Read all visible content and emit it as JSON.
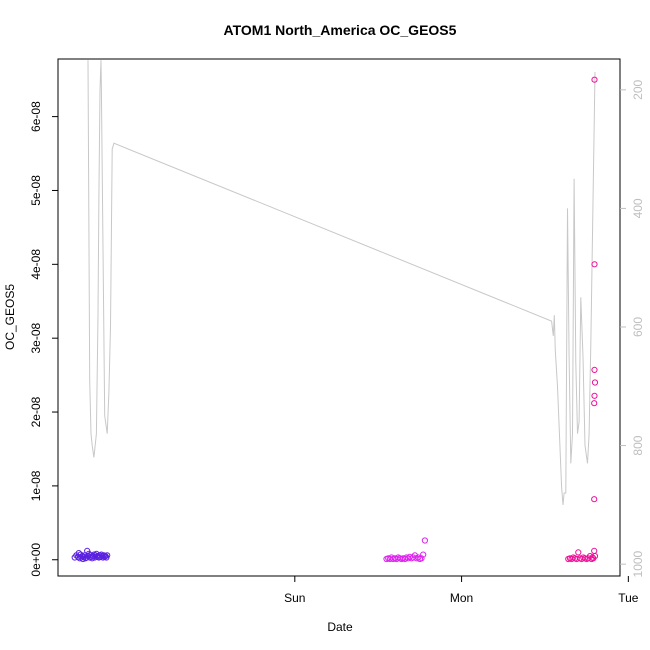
{
  "chart_data": {
    "type": "scatter",
    "title": "ATOM1 North_America OC_GEOS5",
    "xlabel": "Date",
    "ylabel": "OC_GEOS5",
    "xlim": [
      -1.42,
      1.95
    ],
    "ylim": [
      -2.2e-09,
      6.78e-08
    ],
    "x_ticks": [
      {
        "value": 0,
        "label": "Sun"
      },
      {
        "value": 1,
        "label": "Mon"
      },
      {
        "value": 2,
        "label": "Tue"
      }
    ],
    "y_ticks": [
      {
        "value": 0,
        "label": "0e+00"
      },
      {
        "value": 1e-08,
        "label": "1e-08"
      },
      {
        "value": 2e-08,
        "label": "2e-08"
      },
      {
        "value": 3e-08,
        "label": "3e-08"
      },
      {
        "value": 4e-08,
        "label": "4e-08"
      },
      {
        "value": 5e-08,
        "label": "5e-08"
      },
      {
        "value": 6e-08,
        "label": "6e-08"
      }
    ],
    "y2_ylim": [
      1020,
      148
    ],
    "y2_ticks": [
      {
        "value": 200,
        "label": "200"
      },
      {
        "value": 400,
        "label": "400"
      },
      {
        "value": 600,
        "label": "600"
      },
      {
        "value": 800,
        "label": "800"
      },
      {
        "value": 1000,
        "label": "1000"
      }
    ],
    "grid": false,
    "colors": {
      "axis": "#000000",
      "pressure_line": "#c8c8c8",
      "right_axis": "#bebebe"
    },
    "pressure_line": {
      "x": [
        -1.24,
        -1.23,
        -1.222,
        -1.215,
        -1.205,
        -1.19,
        -1.18,
        -1.175,
        -1.168,
        -1.162,
        -1.16,
        -1.14,
        -1.125,
        -1.115,
        -1.105,
        -1.095,
        -1.085,
        1.54,
        1.55,
        1.556,
        1.562,
        1.575,
        1.6,
        1.608,
        1.615,
        1.625,
        1.635,
        1.645,
        1.655,
        1.665,
        1.675,
        1.685,
        1.695,
        1.705,
        1.715,
        1.728,
        1.74,
        1.755,
        1.765,
        1.775,
        1.8
      ],
      "y": [
        150,
        690,
        780,
        800,
        820,
        780,
        580,
        380,
        200,
        150,
        200,
        750,
        780,
        710,
        600,
        300,
        290,
        590,
        615,
        580,
        640,
        700,
        870,
        900,
        880,
        880,
        400,
        650,
        830,
        780,
        350,
        660,
        780,
        760,
        550,
        650,
        800,
        830,
        780,
        630,
        170
      ]
    },
    "series": [
      {
        "color": "#5b21e0",
        "points": [
          [
            -1.32,
            3e-10
          ],
          [
            -1.31,
            6e-10
          ],
          [
            -1.3,
            4e-10
          ],
          [
            -1.295,
            9e-10
          ],
          [
            -1.29,
            2e-10
          ],
          [
            -1.285,
            7e-10
          ],
          [
            -1.28,
            3e-10
          ],
          [
            -1.275,
            5e-10
          ],
          [
            -1.27,
            1e-10
          ],
          [
            -1.265,
            4e-10
          ],
          [
            -1.26,
            6e-10
          ],
          [
            -1.255,
            2e-10
          ],
          [
            -1.25,
            3e-10
          ],
          [
            -1.245,
            1.2e-09
          ],
          [
            -1.24,
            5e-10
          ],
          [
            -1.235,
            8e-10
          ],
          [
            -1.23,
            3e-10
          ],
          [
            -1.225,
            6e-10
          ],
          [
            -1.22,
            4e-10
          ],
          [
            -1.215,
            2e-10
          ],
          [
            -1.21,
            5e-10
          ],
          [
            -1.205,
            7e-10
          ],
          [
            -1.2,
            3e-10
          ],
          [
            -1.195,
            6e-10
          ],
          [
            -1.19,
            8e-10
          ],
          [
            -1.185,
            4e-10
          ],
          [
            -1.18,
            5e-10
          ],
          [
            -1.175,
            3e-10
          ],
          [
            -1.17,
            6e-10
          ],
          [
            -1.165,
            4e-10
          ],
          [
            -1.16,
            7e-10
          ],
          [
            -1.155,
            5e-10
          ],
          [
            -1.15,
            3e-10
          ],
          [
            -1.145,
            6e-10
          ],
          [
            -1.14,
            4e-10
          ],
          [
            -1.135,
            5e-10
          ],
          [
            -1.13,
            3e-10
          ],
          [
            -1.125,
            6e-10
          ]
        ]
      },
      {
        "color": "#dd22ee",
        "points": [
          [
            0.55,
            1e-10
          ],
          [
            0.56,
            2e-10
          ],
          [
            0.57,
            1e-10
          ],
          [
            0.58,
            3e-10
          ],
          [
            0.59,
            1e-10
          ],
          [
            0.6,
            2e-10
          ],
          [
            0.61,
            1e-10
          ],
          [
            0.62,
            3e-10
          ],
          [
            0.63,
            2e-10
          ],
          [
            0.64,
            1e-10
          ],
          [
            0.65,
            2e-10
          ],
          [
            0.66,
            1e-10
          ],
          [
            0.67,
            3e-10
          ],
          [
            0.68,
            2e-10
          ],
          [
            0.69,
            4e-10
          ],
          [
            0.7,
            2e-10
          ],
          [
            0.71,
            3e-10
          ],
          [
            0.72,
            6e-10
          ],
          [
            0.73,
            2e-10
          ],
          [
            0.74,
            3e-10
          ],
          [
            0.75,
            1e-10
          ],
          [
            0.76,
            2e-10
          ],
          [
            0.77,
            7e-10
          ],
          [
            0.78,
            2.6e-09
          ]
        ]
      },
      {
        "color": "#ee1199",
        "points": [
          [
            1.64,
            1e-10
          ],
          [
            1.65,
            2e-10
          ],
          [
            1.66,
            1e-10
          ],
          [
            1.67,
            3e-10
          ],
          [
            1.68,
            2e-10
          ],
          [
            1.69,
            1e-10
          ],
          [
            1.7,
            1e-09
          ],
          [
            1.71,
            2e-10
          ],
          [
            1.72,
            1e-10
          ],
          [
            1.73,
            3e-10
          ],
          [
            1.74,
            2e-10
          ],
          [
            1.75,
            1e-10
          ],
          [
            1.76,
            2e-10
          ],
          [
            1.77,
            5e-10
          ],
          [
            1.78,
            1e-10
          ],
          [
            1.785,
            3e-10
          ],
          [
            1.79,
            2e-10
          ],
          [
            1.795,
            1.2e-09
          ],
          [
            1.8,
            5e-10
          ],
          [
            1.795,
            8.2e-09
          ],
          [
            1.795,
            2.12e-08
          ],
          [
            1.797,
            2.22e-08
          ],
          [
            1.8,
            2.4e-08
          ],
          [
            1.797,
            2.57e-08
          ],
          [
            1.797,
            4e-08
          ],
          [
            1.797,
            6.5e-08
          ]
        ]
      }
    ]
  }
}
